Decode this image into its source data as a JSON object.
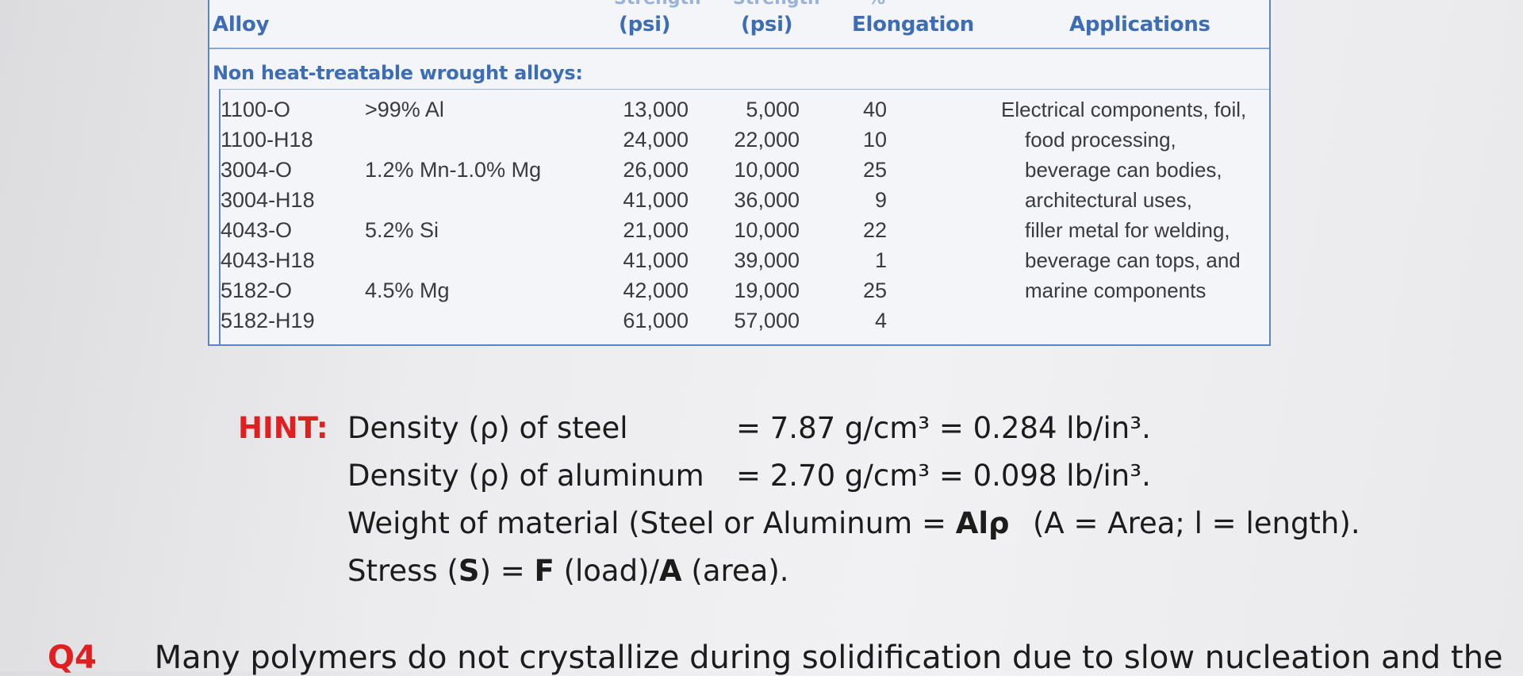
{
  "table": {
    "header_top": {
      "left": "Strength",
      "right": "Strength",
      "pct": "%"
    },
    "headers": {
      "alloy": "Alloy",
      "tensile_unit": "(psi)",
      "yield_unit": "(psi)",
      "elongation": "Elongation",
      "applications": "Applications"
    },
    "section": "Non heat-treatable wrought alloys:",
    "rows": [
      {
        "alloy": "1100-O",
        "comp": ">99% Al",
        "tensile": "13,000",
        "yield": "5,000",
        "elong": "40"
      },
      {
        "alloy": "1100-H18",
        "comp": "",
        "tensile": "24,000",
        "yield": "22,000",
        "elong": "10"
      },
      {
        "alloy": "3004-O",
        "comp": "1.2% Mn-1.0% Mg",
        "tensile": "26,000",
        "yield": "10,000",
        "elong": "25"
      },
      {
        "alloy": "3004-H18",
        "comp": "",
        "tensile": "41,000",
        "yield": "36,000",
        "elong": "9"
      },
      {
        "alloy": "4043-O",
        "comp": "5.2% Si",
        "tensile": "21,000",
        "yield": "10,000",
        "elong": "22"
      },
      {
        "alloy": "4043-H18",
        "comp": "",
        "tensile": "41,000",
        "yield": "39,000",
        "elong": "1"
      },
      {
        "alloy": "5182-O",
        "comp": "4.5% Mg",
        "tensile": "42,000",
        "yield": "19,000",
        "elong": "25"
      },
      {
        "alloy": "5182-H19",
        "comp": "",
        "tensile": "61,000",
        "yield": "57,000",
        "elong": "4"
      }
    ],
    "applications": [
      "Electrical components, foil,",
      "food processing,",
      "beverage can bodies,",
      "architectural uses,",
      "filler metal for welding,",
      "beverage can tops, and",
      "marine components"
    ]
  },
  "hint": {
    "label": "HINT:",
    "line1_a": "Density (ρ) of steel",
    "line1_b": "= 7.87 g/cm³ = 0.284 lb/in³.",
    "line2_a": "Density (ρ) of aluminum",
    "line2_b": "= 2.70 g/cm³ = 0.098 lb/in³.",
    "line3_a": "Weight of material (Steel or Aluminum  =",
    "line3_formula": "Alρ",
    "line3_c": "(A = Area; l = length).",
    "line4_a": "Stress (",
    "line4_s": "S",
    "line4_b": ") = ",
    "line4_f": "F",
    "line4_c": " (load)/",
    "line4_a2": "A",
    "line4_d": " (area)."
  },
  "footer": {
    "qnum": "Q4",
    "text": "Many polymers do not crystallize during solidification due to slow nucleation and the"
  }
}
